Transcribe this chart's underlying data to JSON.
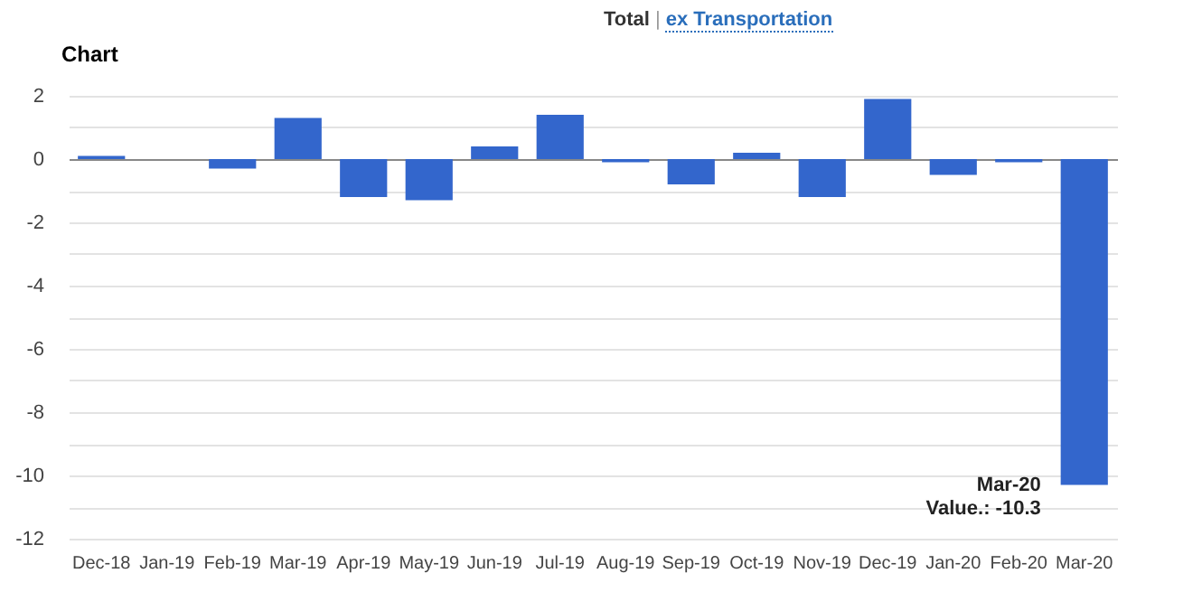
{
  "chart_data": {
    "type": "bar",
    "title": "Chart",
    "annotations": [
      "Total",
      "|",
      "ex Transportation",
      {
        "text": "Mar-20\nValue.: -10.3",
        "x": "Mar-20",
        "y": -10.3
      }
    ],
    "categories": [
      "Dec-18",
      "Jan-19",
      "Feb-19",
      "Mar-19",
      "Apr-19",
      "May-19",
      "Jun-19",
      "Jul-19",
      "Aug-19",
      "Sep-19",
      "Oct-19",
      "Nov-19",
      "Dec-19",
      "Jan-20",
      "Feb-20",
      "Mar-20"
    ],
    "values": [
      0.1,
      0,
      -0.3,
      1.3,
      -1.2,
      -1.3,
      0.4,
      1.4,
      -0.1,
      -0.8,
      0.2,
      -1.2,
      1.9,
      -0.5,
      -0.1,
      -10.3
    ],
    "color": "#3366cc",
    "ylim": [
      -12,
      2
    ],
    "yticks": [
      -12,
      {
        "value": -11,
        "label": null
      },
      -10,
      {
        "value": -9,
        "label": null
      },
      -8,
      {
        "value": -7,
        "label": null
      },
      -6,
      {
        "value": -5,
        "label": null
      },
      -4,
      {
        "value": -3,
        "label": null
      },
      -2,
      {
        "value": -1,
        "label": null
      },
      0,
      {
        "value": 1,
        "label": null
      },
      2
    ],
    "grid": "y"
  }
}
